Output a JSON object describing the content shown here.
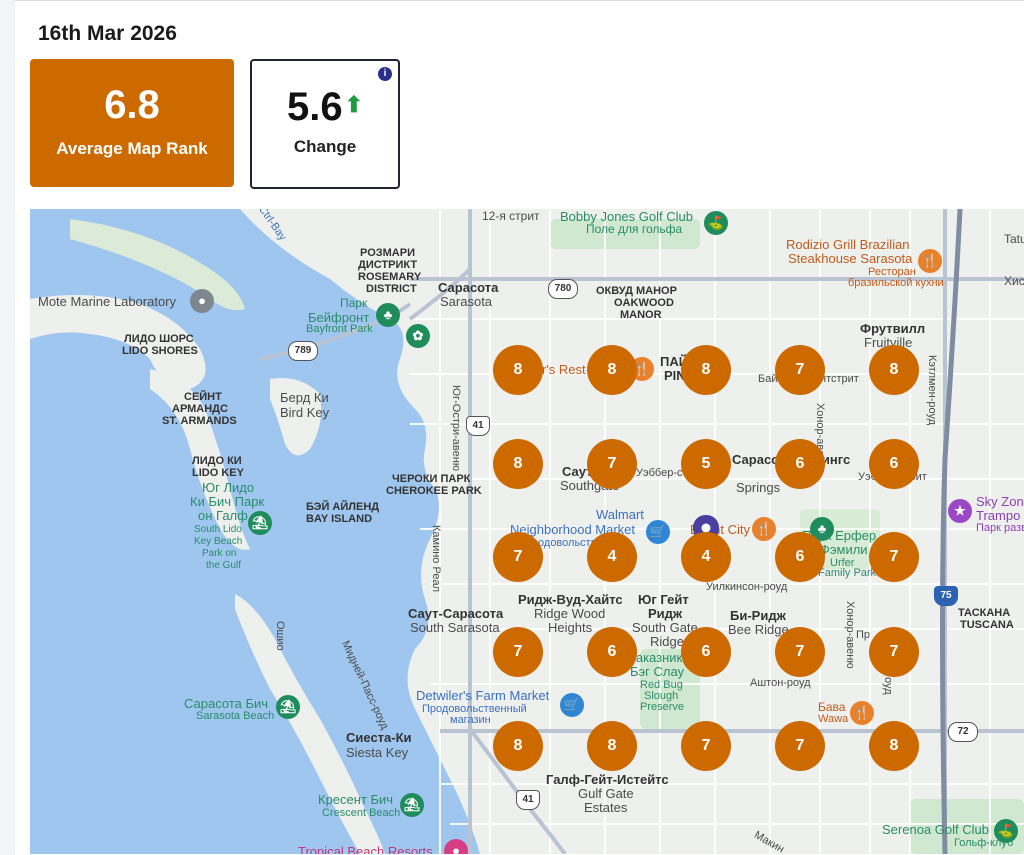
{
  "date": "16th Mar 2026",
  "summary": {
    "average_rank_value": "6.8",
    "average_rank_label": "Average Map Rank",
    "change_value": "5.6",
    "change_label": "Change",
    "info_glyph": "i",
    "up_arrow": "🠉"
  },
  "colors": {
    "rank_card": "#cc6a00",
    "marker": "#cc6a00",
    "up_arrow": "#1e9b3a"
  },
  "grid_rows": [
    [
      "8",
      "8",
      "8",
      "7",
      "8"
    ],
    [
      "8",
      "7",
      "5",
      "6",
      "6"
    ],
    [
      "7",
      "4",
      "4",
      "6",
      "7"
    ],
    [
      "7",
      "6",
      "6",
      "7",
      "7"
    ],
    [
      "8",
      "8",
      "7",
      "7",
      "8"
    ]
  ],
  "map_labels": [
    {
      "t": "12-я стрит"
    },
    {
      "t": "Bobby Jones Golf Club"
    },
    {
      "t": "Поле для гольфа"
    },
    {
      "t": "Rodizio Grill Brazilian"
    },
    {
      "t": "Steakhouse Sarasota"
    },
    {
      "t": "Ресторан"
    },
    {
      "t": "бразильской кухни"
    },
    {
      "t": "Tatu"
    },
    {
      "t": "Хис"
    },
    {
      "t": "РОЗМАРИ"
    },
    {
      "t": "ДИСТРИКТ"
    },
    {
      "t": "ROSEMARY"
    },
    {
      "t": "DISTRICT"
    },
    {
      "t": "Сарасота"
    },
    {
      "t": "Sarasota"
    },
    {
      "t": "ОКВУД МАНОР"
    },
    {
      "t": "OAKWOOD"
    },
    {
      "t": "MANOR"
    },
    {
      "t": "Mote Marine Laboratory"
    },
    {
      "t": "Парк"
    },
    {
      "t": "Бейфронт"
    },
    {
      "t": "Bayfront Park"
    },
    {
      "t": "ЛИДО ШОРС"
    },
    {
      "t": "LIDO SHORES"
    },
    {
      "t": "Фрутвилл"
    },
    {
      "t": "Fruitville"
    },
    {
      "t": "СЕЙНТ"
    },
    {
      "t": "АРМАНДС"
    },
    {
      "t": "ST. ARMANDS"
    },
    {
      "t": "Берд Ки"
    },
    {
      "t": "Bird Key"
    },
    {
      "t": "ЛИДО КИ"
    },
    {
      "t": "LIDO KEY"
    },
    {
      "t": "Юг Лидо"
    },
    {
      "t": "Ки Бич Парк"
    },
    {
      "t": "он Галф"
    },
    {
      "t": "South Lido"
    },
    {
      "t": "Key Beach"
    },
    {
      "t": "Park on"
    },
    {
      "t": "the Gulf"
    },
    {
      "t": "ЧЕРОКИ ПАРК"
    },
    {
      "t": "CHEROKEE PARK"
    },
    {
      "t": "БЭЙ АЙЛЕНД"
    },
    {
      "t": "BAY ISLAND"
    },
    {
      "t": "Саут"
    },
    {
      "t": "Southgate"
    },
    {
      "t": "Уэббер-стрит"
    },
    {
      "t": "Сарасота-Спрингс"
    },
    {
      "t": "Springs"
    },
    {
      "t": "Уэббер-стрит"
    },
    {
      "t": "Sky Zon"
    },
    {
      "t": "Trampo"
    },
    {
      "t": "Парк разв"
    },
    {
      "t": "Walmart"
    },
    {
      "t": "Neighborhood Market"
    },
    {
      "t": "Продовольственный"
    },
    {
      "t": "Bright City"
    },
    {
      "t": "Парк Ерфер"
    },
    {
      "t": "Фэмили"
    },
    {
      "t": "Urfer"
    },
    {
      "t": "Family Park"
    },
    {
      "t": "Уилкинсон-роуд"
    },
    {
      "t": "Ридж-Вуд-Хайтс"
    },
    {
      "t": "Ridge Wood"
    },
    {
      "t": "Heights"
    },
    {
      "t": "Юг Гейт"
    },
    {
      "t": "Ридж"
    },
    {
      "t": "South Gate"
    },
    {
      "t": "Ridge"
    },
    {
      "t": "Би-Ридж"
    },
    {
      "t": "Bee Ridge"
    },
    {
      "t": "ТАСКАНА"
    },
    {
      "t": "TUSCANA"
    },
    {
      "t": "Саут-Сарасота"
    },
    {
      "t": "South Sarasota"
    },
    {
      "t": "Заказник"
    },
    {
      "t": "Бэг Слау"
    },
    {
      "t": "Red Bug"
    },
    {
      "t": "Slough"
    },
    {
      "t": "Preserve"
    },
    {
      "t": "Аштон-роуд"
    },
    {
      "t": "Detwiler's Farm Market"
    },
    {
      "t": "Продовольственный"
    },
    {
      "t": "магазин"
    },
    {
      "t": "Wawa"
    },
    {
      "t": "Сарасота Бич"
    },
    {
      "t": "Sarasota Beach"
    },
    {
      "t": "Сиеста-Ки"
    },
    {
      "t": "Siesta Key"
    },
    {
      "t": "Галф-Гейт-Истейтс"
    },
    {
      "t": "Gulf Gate"
    },
    {
      "t": "Estates"
    },
    {
      "t": "Кресент Бич"
    },
    {
      "t": "Crescent Beach"
    },
    {
      "t": "Tropical Beach Resorts"
    },
    {
      "t": "Serenoa Golf Club"
    },
    {
      "t": "Гольф-клуб"
    },
    {
      "t": "Ctrl-Bay"
    },
    {
      "t": "Бай"
    },
    {
      "t": "нтстрит"
    },
    {
      "t": "Хонор-авеню"
    },
    {
      "t": "Хонор-авеню"
    },
    {
      "t": "Кэтлмен-роуд"
    },
    {
      "t": "Юг-Остри-авеню"
    },
    {
      "t": "Камино Реал"
    },
    {
      "t": "Мидней-Пасс-роуд"
    },
    {
      "t": "Ошио"
    },
    {
      "t": "Бава"
    },
    {
      "t": "Пр"
    },
    {
      "t": "оуд"
    },
    {
      "t": "Макин"
    },
    {
      "t": "r's Rest"
    },
    {
      "t": "ПАЙ"
    },
    {
      "t": "PIN"
    }
  ],
  "route_shields": [
    {
      "t": "780"
    },
    {
      "t": "789"
    },
    {
      "t": "41"
    },
    {
      "t": "41"
    },
    {
      "t": "72"
    },
    {
      "t": "75"
    }
  ],
  "icons": {
    "golf": "⛳",
    "food": "🍴",
    "park": "♣",
    "shop": "🛒",
    "museum": "●",
    "beach": "⛱",
    "fun": "★"
  }
}
